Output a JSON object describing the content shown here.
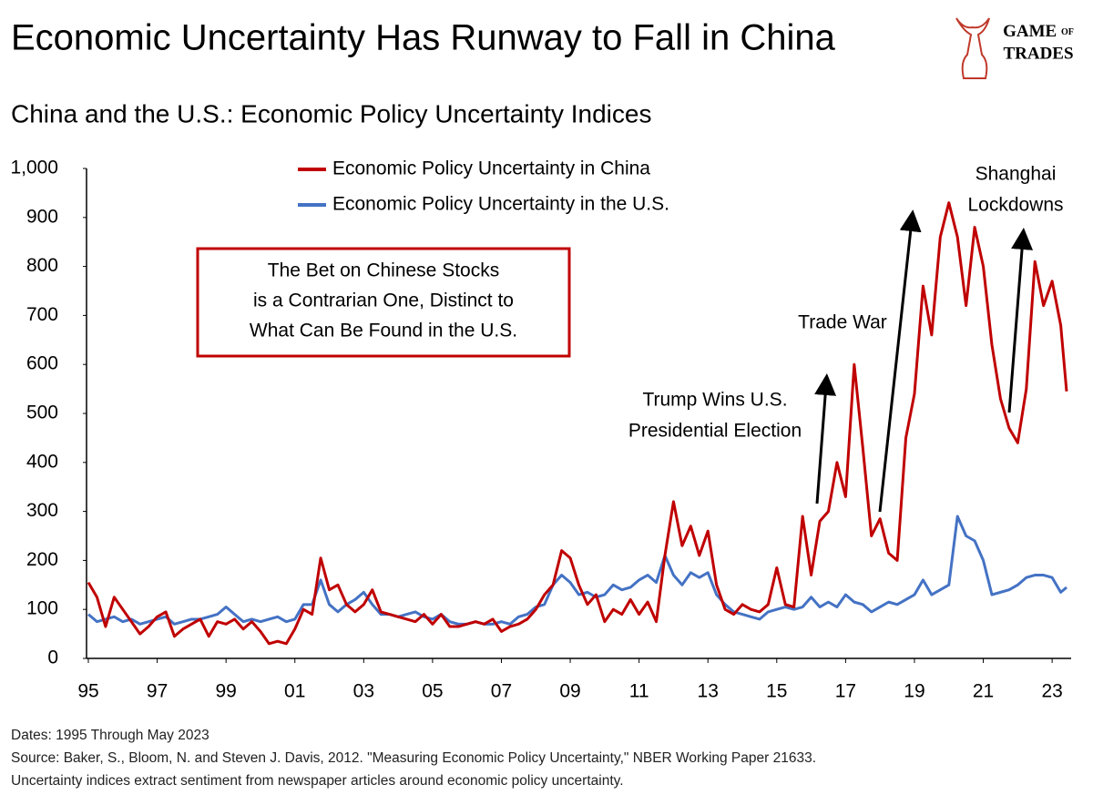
{
  "chart_data": {
    "type": "line",
    "title": "Economic Uncertainty Has Runway to Fall in China",
    "subtitle": "China and the U.S.: Economic Policy Uncertainty Indices",
    "logo": [
      "GAME",
      "OF",
      "TRADES"
    ],
    "callout": [
      "The Bet on Chinese Stocks",
      "is a Contrarian One, Distinct to",
      "What Can Be Found in the U.S."
    ],
    "annotations": [
      [
        "Trump Wins U.S.",
        "Presidential Election"
      ],
      [
        "Trade War"
      ],
      [
        "Shanghai",
        "Lockdowns"
      ]
    ],
    "notes": [
      "Dates: 1995 Through May 2023",
      "Source: Baker, S., Bloom, N. and Steven J. Davis, 2012. \"Measuring Economic Policy Uncertainty,\" NBER Working Paper 21633.",
      "Uncertainty indices extract sentiment from newspaper articles around economic policy uncertainty."
    ],
    "x": [
      1995,
      1995.25,
      1995.5,
      1995.75,
      1996,
      1996.25,
      1996.5,
      1996.75,
      1997,
      1997.25,
      1997.5,
      1997.75,
      1998,
      1998.25,
      1998.5,
      1998.75,
      1999,
      1999.25,
      1999.5,
      1999.75,
      2000,
      2000.25,
      2000.5,
      2000.75,
      2001,
      2001.25,
      2001.5,
      2001.75,
      2002,
      2002.25,
      2002.5,
      2002.75,
      2003,
      2003.25,
      2003.5,
      2003.75,
      2004,
      2004.25,
      2004.5,
      2004.75,
      2005,
      2005.25,
      2005.5,
      2005.75,
      2006,
      2006.25,
      2006.5,
      2006.75,
      2007,
      2007.25,
      2007.5,
      2007.75,
      2008,
      2008.25,
      2008.5,
      2008.75,
      2009,
      2009.25,
      2009.5,
      2009.75,
      2010,
      2010.25,
      2010.5,
      2010.75,
      2011,
      2011.25,
      2011.5,
      2011.75,
      2012,
      2012.25,
      2012.5,
      2012.75,
      2013,
      2013.25,
      2013.5,
      2013.75,
      2014,
      2014.25,
      2014.5,
      2014.75,
      2015,
      2015.25,
      2015.5,
      2015.75,
      2016,
      2016.25,
      2016.5,
      2016.75,
      2017,
      2017.25,
      2017.5,
      2017.75,
      2018,
      2018.25,
      2018.5,
      2018.75,
      2019,
      2019.25,
      2019.5,
      2019.75,
      2020,
      2020.25,
      2020.5,
      2020.75,
      2021,
      2021.25,
      2021.5,
      2021.75,
      2022,
      2022.25,
      2022.5,
      2022.75,
      2023,
      2023.25,
      2023.42
    ],
    "series": [
      {
        "name": "Economic Policy Uncertainty in China",
        "color": "#c00000",
        "values": [
          155,
          125,
          65,
          125,
          100,
          75,
          50,
          65,
          85,
          95,
          45,
          60,
          70,
          80,
          45,
          75,
          70,
          80,
          60,
          75,
          55,
          30,
          35,
          30,
          60,
          100,
          90,
          205,
          140,
          150,
          110,
          95,
          110,
          140,
          95,
          90,
          85,
          80,
          75,
          90,
          70,
          90,
          65,
          65,
          70,
          75,
          70,
          80,
          55,
          65,
          70,
          80,
          100,
          130,
          150,
          220,
          205,
          150,
          110,
          130,
          75,
          100,
          90,
          120,
          90,
          115,
          75,
          210,
          320,
          230,
          270,
          210,
          260,
          150,
          100,
          90,
          110,
          100,
          95,
          110,
          185,
          110,
          105,
          290,
          170,
          280,
          300,
          400,
          330,
          600,
          430,
          250,
          285,
          215,
          200,
          450,
          540,
          760,
          660,
          860,
          930,
          860,
          720,
          880,
          800,
          640,
          530,
          470,
          440,
          550,
          810,
          720,
          770,
          680,
          545
        ]
      },
      {
        "name": "Economic Policy Uncertainty in the U.S.",
        "color": "#4472c4",
        "values": [
          90,
          75,
          80,
          85,
          75,
          80,
          70,
          75,
          80,
          85,
          70,
          75,
          80,
          80,
          85,
          90,
          105,
          90,
          75,
          80,
          75,
          80,
          85,
          75,
          80,
          110,
          110,
          160,
          110,
          95,
          110,
          120,
          135,
          110,
          90,
          90,
          85,
          90,
          95,
          85,
          80,
          90,
          75,
          70,
          70,
          75,
          70,
          70,
          75,
          70,
          85,
          90,
          105,
          110,
          150,
          170,
          155,
          130,
          135,
          125,
          130,
          150,
          140,
          145,
          160,
          170,
          155,
          210,
          170,
          150,
          175,
          165,
          175,
          130,
          110,
          95,
          90,
          85,
          80,
          95,
          100,
          105,
          100,
          105,
          125,
          105,
          115,
          105,
          130,
          115,
          110,
          95,
          105,
          115,
          110,
          120,
          130,
          160,
          130,
          140,
          150,
          290,
          250,
          240,
          200,
          130,
          135,
          140,
          150,
          165,
          170,
          170,
          165,
          135,
          145
        ]
      }
    ],
    "xlim": [
      1995,
      2023.42
    ],
    "xticks": [
      {
        "value": 1995,
        "label": "95"
      },
      {
        "value": 1997,
        "label": "97"
      },
      {
        "value": 1999,
        "label": "99"
      },
      {
        "value": 2001,
        "label": "01"
      },
      {
        "value": 2003,
        "label": "03"
      },
      {
        "value": 2005,
        "label": "05"
      },
      {
        "value": 2007,
        "label": "07"
      },
      {
        "value": 2009,
        "label": "09"
      },
      {
        "value": 2011,
        "label": "11"
      },
      {
        "value": 2013,
        "label": "13"
      },
      {
        "value": 2015,
        "label": "15"
      },
      {
        "value": 2017,
        "label": "17"
      },
      {
        "value": 2019,
        "label": "19"
      },
      {
        "value": 2021,
        "label": "21"
      },
      {
        "value": 2023,
        "label": "23"
      }
    ],
    "ylim": [
      0,
      1000
    ],
    "yticks": [
      0,
      100,
      200,
      300,
      400,
      500,
      600,
      700,
      800,
      900,
      {
        "value": 1000,
        "label": "1,000"
      }
    ],
    "grid": false
  }
}
